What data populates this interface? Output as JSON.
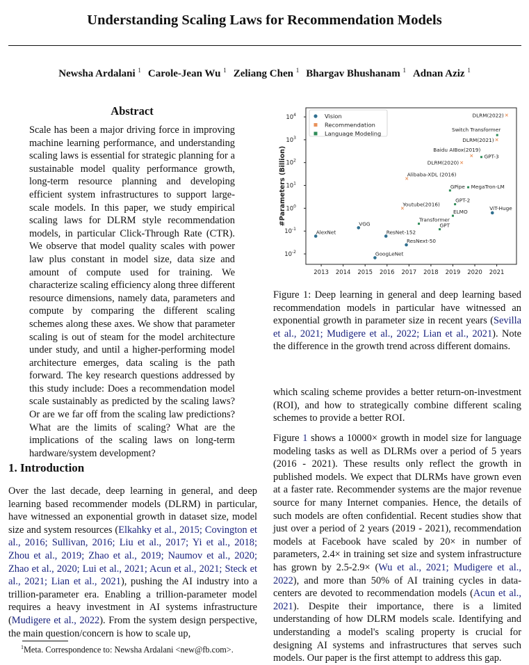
{
  "title": "Understanding Scaling Laws for Recommendation Models",
  "authors": [
    {
      "name": "Newsha Ardalani",
      "affil": "1"
    },
    {
      "name": "Carole-Jean Wu",
      "affil": "1"
    },
    {
      "name": "Zeliang Chen",
      "affil": "1"
    },
    {
      "name": "Bhargav Bhushanam",
      "affil": "1"
    },
    {
      "name": "Adnan Aziz",
      "affil": "1"
    }
  ],
  "abstract": {
    "heading": "Abstract",
    "text": "Scale has been a major driving force in improving machine learning performance, and understanding scaling laws is essential for strategic planning for a sustainable model quality performance growth, long-term resource planning and developing efficient system infrastructures to support large-scale models. In this paper, we study empirical scaling laws for DLRM style recommendation models, in particular Click-Through Rate (CTR). We observe that model quality scales with power law plus constant in model size, data size and amount of compute used for training. We characterize scaling efficiency along three different resource dimensions, namely data, parameters and compute by comparing the different scaling schemes along these axes. We show that parameter scaling is out of steam for the model architecture under study, and until a higher-performing model architecture emerges, data scaling is the path forward. The key research questions addressed by this study include: Does a recommendation model scale sustainably as predicted by the scaling laws? Or are we far off from the scaling law predictions? What are the limits of scaling? What are the implications of the scaling laws on long-term hardware/system development?"
  },
  "introduction": {
    "heading": "1. Introduction",
    "segments": [
      {
        "t": "Over the last decade, deep learning in general, and deep learning based recommender models (DLRM) in particular, have witnessed an exponential growth in dataset size, model size and system resources ("
      },
      {
        "t": "Elkahky et al., 2015; Covington et al., 2016; Sullivan, 2016; Liu et al., 2017; Yi et al., 2018; Zhou et al., 2019; Zhao et al., 2019; Naumov et al., 2020; Zhao et al., 2020; Lui et al., 2021; Acun et al., 2021; Steck et al., 2021; Lian et al., 2021",
        "cite": true
      },
      {
        "t": "), pushing the AI industry into a trillion-parameter era. Enabling a trillion-parameter model requires a heavy investment in AI systems infrastructure ("
      },
      {
        "t": "Mudigere et al., 2022",
        "cite": true
      },
      {
        "t": "). From the system design perspective, the main question/concern is how to scale up,"
      }
    ]
  },
  "footnote": {
    "mark": "1",
    "text": "Meta. Correspondence to: Newsha Ardalani <new@fb.com>."
  },
  "figure": {
    "caption_segments": [
      {
        "t": "Figure 1: Deep learning in general and deep learning based recommendation models in particular have witnessed an exponential growth in parameter size in recent years ("
      },
      {
        "t": "Sevilla et al., 2021; Mudigere et al., 2022; Lian et al., 2021",
        "cite": true
      },
      {
        "t": "). Note the difference in the growth trend across different domains."
      }
    ]
  },
  "chart_data": {
    "type": "scatter",
    "ylabel": "#Parameters (Billion)",
    "xlabel": "",
    "yscale": "log",
    "ylim": [
      0.0035,
      25000
    ],
    "xlim": [
      2012.3,
      2021.9
    ],
    "xticks": [
      "2013",
      "2014",
      "2015",
      "2016",
      "2017",
      "2018",
      "2019",
      "2020",
      "2021"
    ],
    "yticks": [
      {
        "base": "10",
        "exp": "-2"
      },
      {
        "base": "10",
        "exp": "-1"
      },
      {
        "base": "10",
        "exp": "0"
      },
      {
        "base": "10",
        "exp": "1"
      },
      {
        "base": "10",
        "exp": "2"
      },
      {
        "base": "10",
        "exp": "3"
      },
      {
        "base": "10",
        "exp": "4"
      }
    ],
    "legend": "top-left",
    "grid": false,
    "series": [
      {
        "name": "Vision",
        "color": "#2f6f8f",
        "marker": "circle",
        "points": [
          {
            "label": "AlexNet",
            "x": 2012.75,
            "y": 0.06
          },
          {
            "label": "VGG",
            "x": 2014.7,
            "y": 0.14
          },
          {
            "label": "GoogLeNet",
            "x": 2015.45,
            "y": 0.0068
          },
          {
            "label": "ResNet-152",
            "x": 2015.95,
            "y": 0.06
          },
          {
            "label": "ResNext-50",
            "x": 2016.88,
            "y": 0.025
          },
          {
            "label": "ViT-Huge",
            "x": 2020.8,
            "y": 0.63
          }
        ]
      },
      {
        "name": "Recommendation",
        "color": "#e8915a",
        "marker": "x",
        "points": [
          {
            "label": "Youtube(2016)",
            "x": 2016.7,
            "y": 1
          },
          {
            "label": "Alibaba-XDL (2016)",
            "x": 2016.9,
            "y": 20
          },
          {
            "label": "DLRM(2020)",
            "x": 2019.4,
            "y": 100
          },
          {
            "label": "Baidu AIBox(2019)",
            "x": 2019.85,
            "y": 200
          },
          {
            "label": "DLRM(2021)",
            "x": 2021.0,
            "y": 1000
          },
          {
            "label": "DLRM(2022)",
            "x": 2021.45,
            "y": 12000
          }
        ]
      },
      {
        "name": "Language Modeling",
        "color": "#2e8b57",
        "marker": "square",
        "points": [
          {
            "label": "Transformer",
            "x": 2017.45,
            "y": 0.21
          },
          {
            "label": "GPT",
            "x": 2018.4,
            "y": 0.12
          },
          {
            "label": "ELMO",
            "x": 2019.0,
            "y": 0.47
          },
          {
            "label": "GPT-2",
            "x": 2019.1,
            "y": 1.5
          },
          {
            "label": "GPipe",
            "x": 2018.87,
            "y": 6
          },
          {
            "label": "MegaTron-LM",
            "x": 2019.7,
            "y": 8.3
          },
          {
            "label": "GPT-3",
            "x": 2020.3,
            "y": 175
          },
          {
            "label": "Switch Transformer",
            "x": 2021.02,
            "y": 1600
          }
        ]
      }
    ]
  },
  "right_column": {
    "p1_segments": [
      {
        "t": "which scaling scheme provides a better return-on-investment (ROI), and how to strategically combine different scaling schemes to provide a better ROI."
      }
    ],
    "p2_segments": [
      {
        "t": "Figure "
      },
      {
        "t": "1",
        "cite": true
      },
      {
        "t": " shows a 10000× growth in model size for language modeling tasks as well as DLRMs over a period of 5 years (2016 - 2021). These results only reflect the growth in published models. We expect that DLRMs have grown even at a faster rate. Recommender systems are the major revenue source for many Internet companies. Hence, the details of such models are often confidential. Recent studies show that just over a period of 2 years (2019 - 2021), recommendation models at Facebook have scaled by 20× in number of parameters, 2.4× in training set size and system infrastructure has grown by 2.5-2.9× ("
      },
      {
        "t": "Wu et al., 2021; Mudigere et al., 2022",
        "cite": true
      },
      {
        "t": "), and more than 50% of AI training cycles in data-centers are devoted to recommendation models ("
      },
      {
        "t": "Acun et al., 2021",
        "cite": true
      },
      {
        "t": "). Despite their importance, there is a limited understanding of how DLRM models scale. Identifying and understanding a model's scaling property is crucial for designing AI systems and infrastructures that serves such models. Our paper is the first attempt to address this gap."
      }
    ]
  }
}
